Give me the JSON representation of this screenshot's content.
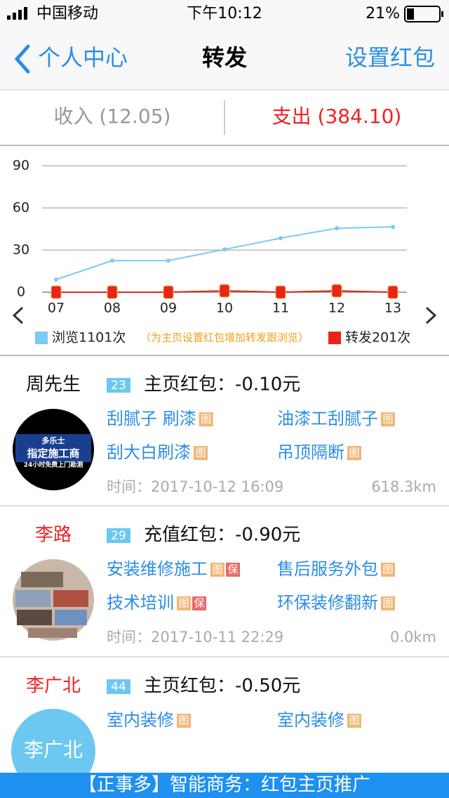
{
  "status_bar": {
    "carrier": "中国移动",
    "time": "下午10:12",
    "battery": "21%"
  },
  "nav": {
    "back": "个人中心",
    "title": "转发",
    "action": "设置红包"
  },
  "tabs": [
    "收入 (12.05)",
    "支出 (384.10)"
  ],
  "chart_data": {
    "type": "line",
    "categories": [
      "07",
      "08",
      "09",
      "10",
      "11",
      "12",
      "13"
    ],
    "series": [
      {
        "name": "浏览1101次",
        "color": "#7ccbf0",
        "values": [
          9,
          22.5,
          22.5,
          30.5,
          38.5,
          45.5,
          46.5
        ]
      },
      {
        "name": "转发201次",
        "color": "#e8251a",
        "values": [
          0,
          0,
          0,
          1,
          0,
          1,
          0
        ]
      }
    ],
    "ylim": [
      0,
      90
    ],
    "yticks": [
      0,
      30,
      60,
      90
    ],
    "grid": true,
    "annotation": "（为主页设置红包增加转发跟浏览）"
  },
  "items": [
    {
      "name": "周先生",
      "badge": "23",
      "title": "主页红包：-0.10元",
      "avatar": [
        "多乐士",
        "指定施工商",
        "24小时免费上门勘测"
      ],
      "tags": [
        {
          "label": "刮腻子 刷漆",
          "icons": [
            "图"
          ]
        },
        {
          "label": "油漆工刮腻子",
          "icons": [
            "图"
          ]
        },
        {
          "label": "刮大白刷漆",
          "icons": [
            "图"
          ]
        },
        {
          "label": "吊顶隔断",
          "icons": [
            "图"
          ]
        }
      ],
      "time_label": "时间：",
      "time": "2017-10-12 16:09",
      "distance": "618.3km"
    },
    {
      "name": "李路",
      "badge": "29",
      "title": "充值红包：-0.90元",
      "tags": [
        {
          "label": "安装维修施工",
          "icons": [
            "图",
            "保"
          ]
        },
        {
          "label": "售后服务外包",
          "icons": [
            "图"
          ]
        },
        {
          "label": "技术培训",
          "icons": [
            "图",
            "保"
          ]
        },
        {
          "label": "环保装修翻新",
          "icons": [
            "图"
          ]
        }
      ],
      "time_label": "时间：",
      "time": "2017-10-11 22:29",
      "distance": "0.0km"
    },
    {
      "name": "李广北",
      "badge": "44",
      "title": "主页红包：-0.50元",
      "avatar": [
        "李广北"
      ],
      "tags": [
        {
          "label": "室内装修",
          "icons": [
            "图"
          ]
        },
        {
          "label": "室内装修",
          "icons": [
            "图"
          ]
        }
      ]
    }
  ],
  "banner": "【正事多】智能商务：红包主页推广"
}
